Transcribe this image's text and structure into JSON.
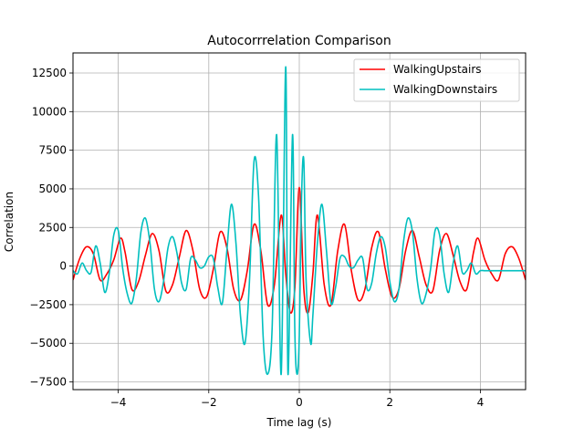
{
  "chart_data": {
    "type": "line",
    "title": "Autocorrrelation Comparison",
    "xlabel": "Time lag (s)",
    "ylabel": "Correlation",
    "xlim": [
      -5,
      5
    ],
    "ylim": [
      -8000,
      13800
    ],
    "xticks": [
      -4,
      -2,
      0,
      2,
      4
    ],
    "yticks": [
      -7500,
      -5000,
      -2500,
      0,
      2500,
      5000,
      7500,
      10000,
      12500
    ],
    "grid": true,
    "legend_position": "top-right",
    "series": [
      {
        "name": "WalkingUpstairs",
        "color": "#ff0000",
        "x": [
          -5,
          -4.85,
          -4.7,
          -4.55,
          -4.4,
          -4.25,
          -4.1,
          -3.95,
          -3.85,
          -3.7,
          -3.55,
          -3.4,
          -3.25,
          -3.1,
          -2.95,
          -2.8,
          -2.65,
          -2.5,
          -2.35,
          -2.2,
          -2.05,
          -1.9,
          -1.75,
          -1.6,
          -1.45,
          -1.3,
          -1.15,
          -1.0,
          -0.85,
          -0.7,
          -0.55,
          -0.4,
          -0.3,
          -0.2,
          -0.1,
          0,
          0.1,
          0.2,
          0.3,
          0.4,
          0.55,
          0.7,
          0.85,
          1.0,
          1.15,
          1.3,
          1.45,
          1.6,
          1.75,
          1.9,
          2.05,
          2.2,
          2.35,
          2.5,
          2.65,
          2.8,
          2.95,
          3.1,
          3.25,
          3.4,
          3.55,
          3.7,
          3.85,
          3.95,
          4.1,
          4.25,
          4.4,
          4.55,
          4.7,
          4.85,
          5
        ],
        "values": [
          -900,
          500,
          1250,
          800,
          -900,
          -500,
          400,
          1800,
          900,
          -1500,
          -1000,
          700,
          2100,
          1000,
          -1600,
          -1200,
          600,
          2300,
          1000,
          -1500,
          -2000,
          -200,
          2200,
          1200,
          -1500,
          -2200,
          -300,
          2700,
          1000,
          -2500,
          -1200,
          3300,
          -500,
          -3000,
          -1500,
          5100,
          -1500,
          -3000,
          -500,
          3300,
          -1200,
          -2500,
          1000,
          2700,
          -300,
          -2200,
          -1500,
          1200,
          2200,
          -200,
          -2000,
          -1500,
          1000,
          2300,
          600,
          -1200,
          -1600,
          1000,
          2100,
          700,
          -1000,
          -1500,
          900,
          1800,
          400,
          -500,
          -900,
          800,
          1250,
          500,
          -900
        ]
      },
      {
        "name": "WalkingDownstairs",
        "color": "#00bfbf",
        "x": [
          -5,
          -4.9,
          -4.8,
          -4.7,
          -4.6,
          -4.5,
          -4.4,
          -4.3,
          -4.2,
          -4.1,
          -4.0,
          -3.9,
          -3.8,
          -3.7,
          -3.6,
          -3.5,
          -3.4,
          -3.3,
          -3.2,
          -3.1,
          -3.0,
          -2.9,
          -2.8,
          -2.7,
          -2.6,
          -2.5,
          -2.4,
          -2.3,
          -2.2,
          -2.1,
          -2.0,
          -1.9,
          -1.8,
          -1.7,
          -1.6,
          -1.5,
          -1.4,
          -1.3,
          -1.2,
          -1.1,
          -1.0,
          -0.9,
          -0.8,
          -0.7,
          -0.6,
          -0.5,
          -0.4,
          -0.3,
          -0.25,
          -0.15,
          -0.1,
          -0.05,
          0,
          0.05,
          0.1,
          0.15,
          0.25,
          0.3,
          0.4,
          0.5,
          0.6,
          0.7,
          0.8,
          0.9,
          1.0,
          1.1,
          1.2,
          1.3,
          1.4,
          1.5,
          1.6,
          1.7,
          1.8,
          1.9,
          2.0,
          2.1,
          2.2,
          2.3,
          2.4,
          2.5,
          2.6,
          2.7,
          2.8,
          2.9,
          3.0,
          3.1,
          3.2,
          3.3,
          3.4,
          3.5,
          3.6,
          3.7,
          3.8,
          3.9,
          4.0,
          4.1,
          4.2,
          4.3,
          4.4,
          4.5,
          4.6,
          4.7,
          4.8,
          4.9,
          5
        ],
        "values": [
          -300,
          -500,
          200,
          -300,
          -400,
          1300,
          200,
          -1700,
          -500,
          2000,
          2300,
          -200,
          -1800,
          -2400,
          -800,
          2200,
          3100,
          1500,
          -1500,
          -2300,
          -1000,
          1200,
          1900,
          800,
          -1100,
          -1500,
          500,
          400,
          -100,
          0,
          600,
          500,
          -1400,
          -2400,
          1000,
          4000,
          1500,
          -3200,
          -5000,
          -900,
          6800,
          4500,
          -4500,
          -7000,
          -4000,
          8500,
          -7000,
          12900,
          -7000,
          8500,
          -4000,
          -7000,
          -4500,
          4500,
          6800,
          -900,
          -5000,
          -3200,
          1500,
          4000,
          1000,
          -2400,
          -1400,
          500,
          600,
          0,
          -100,
          400,
          500,
          -1500,
          -1100,
          800,
          1900,
          1200,
          -1000,
          -2300,
          -1500,
          1500,
          3100,
          2200,
          -800,
          -2400,
          -1800,
          -200,
          2300,
          2000,
          -500,
          -1700,
          200,
          1300,
          -400,
          -300,
          200,
          -500,
          -300,
          -300,
          -300,
          -300,
          -300,
          -300,
          -300,
          -300,
          -300,
          -300,
          -300
        ]
      }
    ]
  }
}
